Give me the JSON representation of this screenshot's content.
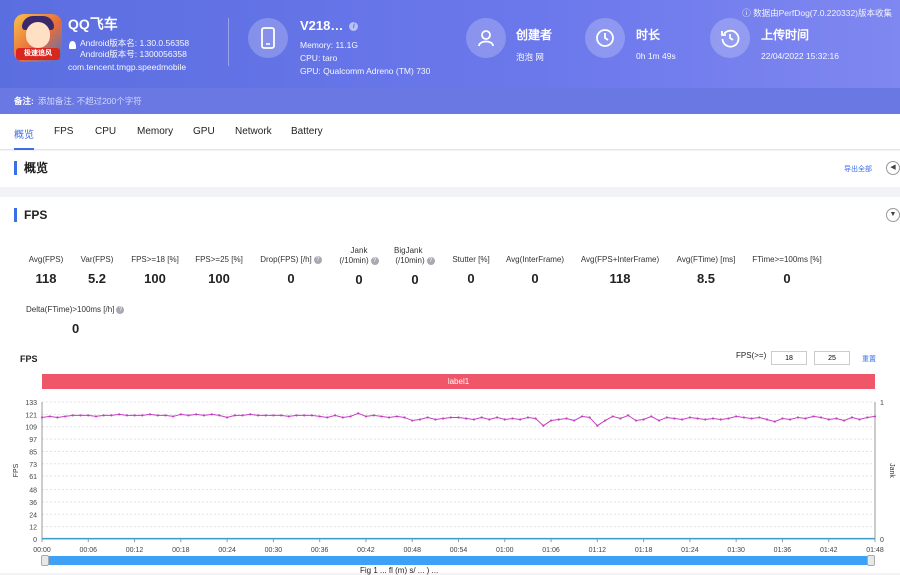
{
  "header": {
    "app_name": "QQ飞车",
    "app_badge": "极速追风",
    "android_version_name": "Android版本名: 1.30.0.56358",
    "android_version_code": "Android版本号: 1300056358",
    "package": "com.tencent.tmgp.speedmobile",
    "device_name": "V218…",
    "memory": "Memory: 11.1G",
    "cpu": "CPU: taro",
    "gpu": "GPU: Qualcomm Adreno (TM) 730",
    "creator_title": "创建者",
    "creator_value": "泡泡 网",
    "duration_title": "时长",
    "duration_value": "0h 1m 49s",
    "upload_title": "上传时间",
    "upload_value": "22/04/2022 15:32:16",
    "credit": "ⓘ 数据由PerfDog(7.0.220332)版本收集",
    "remark_label": "备注:",
    "remark_placeholder": "添加备注, 不超过200个字符"
  },
  "tabs": [
    {
      "label": "概览"
    },
    {
      "label": "FPS"
    },
    {
      "label": "CPU"
    },
    {
      "label": "Memory"
    },
    {
      "label": "GPU"
    },
    {
      "label": "Network"
    },
    {
      "label": "Battery"
    }
  ],
  "overview": {
    "title": "概览",
    "export": "导出全部"
  },
  "fps_section": {
    "title": "FPS",
    "metrics": [
      {
        "key": "Avg(FPS)",
        "value": "118"
      },
      {
        "key": "Var(FPS)",
        "value": "5.2"
      },
      {
        "key": "FPS>=18 [%]",
        "value": "100"
      },
      {
        "key": "FPS>=25 [%]",
        "value": "100"
      },
      {
        "key": "Drop(FPS) [/h]",
        "value": "0"
      },
      {
        "key": "Jank",
        "key2": "(/10min)",
        "value": "0"
      },
      {
        "key": "BigJank",
        "key2": "(/10min)",
        "value": "0"
      },
      {
        "key": "Stutter [%]",
        "value": "0"
      },
      {
        "key": "Avg(InterFrame)",
        "value": "0"
      },
      {
        "key": "Avg(FPS+InterFrame)",
        "value": "118"
      },
      {
        "key": "Avg(FTime) [ms]",
        "value": "8.5"
      },
      {
        "key": "FTime>=100ms [%]",
        "value": "0"
      },
      {
        "key": "Delta(FTime)>100ms [/h]",
        "value": "0"
      }
    ]
  },
  "chart_controls": {
    "title": "FPS",
    "fps_ge_label": "FPS(>=)",
    "fps_threshold_1": "18",
    "fps_threshold_2": "25",
    "reset": "重置",
    "label_bar": "label1",
    "caption": "Fig 1 ... fl (m) s/ ... ) ..."
  },
  "chart_data": {
    "type": "line",
    "ylabel": "FPS",
    "y2label": "Jank",
    "ylim": [
      0,
      133
    ],
    "y_ticks": [
      0,
      12,
      24,
      36,
      48,
      61,
      73,
      85,
      97,
      109,
      121,
      133
    ],
    "y2_ticks": [
      0,
      1
    ],
    "x_ticks": [
      "00:00",
      "00:06",
      "00:12",
      "00:18",
      "00:24",
      "00:30",
      "00:36",
      "00:42",
      "00:48",
      "00:54",
      "01:00",
      "01:06",
      "01:12",
      "01:18",
      "01:24",
      "01:30",
      "01:36",
      "01:42",
      "01:48"
    ],
    "x_seconds_max": 108,
    "series": [
      {
        "name": "FPS",
        "color": "#c43fbf",
        "values": [
          118,
          119,
          118,
          119,
          120,
          120,
          120,
          119,
          120,
          120,
          121,
          120,
          120,
          120,
          121,
          120,
          120,
          119,
          121,
          120,
          121,
          120,
          121,
          120,
          118,
          120,
          120,
          121,
          120,
          120,
          120,
          120,
          119,
          120,
          120,
          120,
          119,
          118,
          120,
          118,
          119,
          122,
          119,
          120,
          119,
          118,
          119,
          118,
          115,
          116,
          118,
          116,
          117,
          118,
          118,
          117,
          116,
          118,
          116,
          118,
          116,
          117,
          116,
          118,
          117,
          110,
          115,
          116,
          117,
          115,
          119,
          118,
          110,
          115,
          119,
          117,
          120,
          115,
          116,
          119,
          115,
          118,
          117,
          116,
          118,
          117,
          116,
          117,
          116,
          117,
          119,
          118,
          117,
          118,
          116,
          114,
          117,
          116,
          118,
          117,
          119,
          118,
          116,
          117,
          115,
          118,
          116,
          118,
          119
        ]
      },
      {
        "name": "Jank",
        "color": "#3ca0c6",
        "values": [
          0
        ]
      }
    ]
  }
}
